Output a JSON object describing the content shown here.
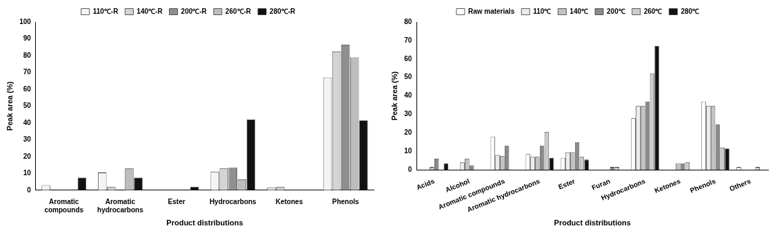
{
  "chart_data": [
    {
      "type": "bar",
      "x_label": "Product distributions",
      "y_label": "Peak area (%)",
      "categories": [
        "Aromatic compounds",
        "Aromatic hydrocarbons",
        "Ester",
        "Hydrocarbons",
        "Ketones",
        "Phenols"
      ],
      "series": [
        {
          "name": "110℃-R",
          "color": "#f4f4f4",
          "values": [
            3,
            10.5,
            0,
            11,
            1.5,
            67
          ]
        },
        {
          "name": "140℃-R",
          "color": "#d4d4d4",
          "values": [
            0,
            2,
            0,
            13,
            2,
            82.5
          ]
        },
        {
          "name": "200℃-R",
          "color": "#8f8f8f",
          "values": [
            0,
            0,
            0,
            13.5,
            0,
            86.5
          ]
        },
        {
          "name": "260℃-R",
          "color": "#bdbdbd",
          "values": [
            0,
            13,
            0,
            6.5,
            0,
            79
          ]
        },
        {
          "name": "280℃-R",
          "color": "#111111",
          "values": [
            7.5,
            7.5,
            2,
            42,
            0,
            41.5
          ]
        }
      ],
      "ylim": [
        0,
        100
      ],
      "yticks": [
        0,
        10,
        20,
        30,
        40,
        50,
        60,
        70,
        80,
        90,
        100
      ],
      "grid": false,
      "legend": "top"
    },
    {
      "type": "bar",
      "x_label": "Product distributions",
      "y_label": "Peak area (%)",
      "categories": [
        "Acids",
        "Alcohol",
        "Aromatic compounds",
        "Aromatic hydrocarbons",
        "Ester",
        "Furan",
        "Hydrocarbons",
        "Ketones",
        "Phenols",
        "Others"
      ],
      "series": [
        {
          "name": "Raw materials",
          "color": "#ffffff",
          "values": [
            0,
            0,
            18,
            8.5,
            6.5,
            0,
            28,
            0,
            37,
            1.5
          ]
        },
        {
          "name": "110℃",
          "color": "#ececec",
          "values": [
            0,
            4,
            8,
            7,
            9.5,
            0,
            34.5,
            0,
            34.5,
            0
          ]
        },
        {
          "name": "140℃",
          "color": "#c2c2c2",
          "values": [
            1.5,
            6,
            7.5,
            7,
            9.5,
            0,
            34.5,
            3.5,
            34.5,
            0
          ]
        },
        {
          "name": "200℃",
          "color": "#8a8a8a",
          "values": [
            6,
            2.5,
            13,
            13,
            15,
            1.5,
            37,
            3.5,
            24.5,
            0
          ]
        },
        {
          "name": "260℃",
          "color": "#cccccc",
          "values": [
            0,
            0,
            0,
            20.5,
            7,
            1.5,
            52,
            4,
            12,
            1.5
          ]
        },
        {
          "name": "280℃",
          "color": "#111111",
          "values": [
            3.5,
            0,
            0,
            6.5,
            5.5,
            0,
            67,
            0,
            11.5,
            0
          ]
        }
      ],
      "ylim": [
        0,
        80
      ],
      "yticks": [
        0,
        10,
        20,
        30,
        40,
        50,
        60,
        70,
        80
      ],
      "grid": false,
      "legend": "top"
    }
  ]
}
